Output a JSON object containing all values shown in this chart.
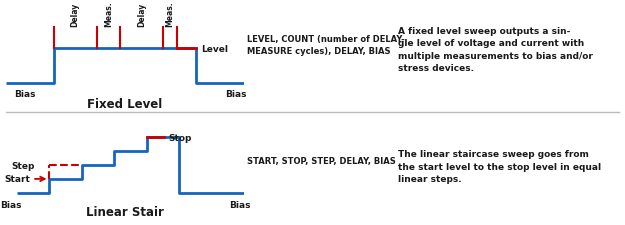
{
  "bg_color": "#ffffff",
  "line_color": "#1565c0",
  "red_color": "#cc0000",
  "text_color": "#1a1a1a",
  "divider_color": "#bbbbbb",
  "fixed_level": {
    "title": "Fixed Level",
    "params_text": "LEVEL, COUNT (number of DELAY-\nMEASURE cycles), DELAY, BIAS",
    "desc_text": "A fixed level sweep outputs a sin-\ngle level of voltage and current with\nmultiple measurements to bias and/or\nstress devices."
  },
  "linear_stair": {
    "title": "Linear Stair",
    "params_text": "START, STOP, STEP, DELAY, BIAS",
    "desc_text": "The linear staircase sweep goes from\nthe start level to the stop level in equal\nlinear steps."
  }
}
